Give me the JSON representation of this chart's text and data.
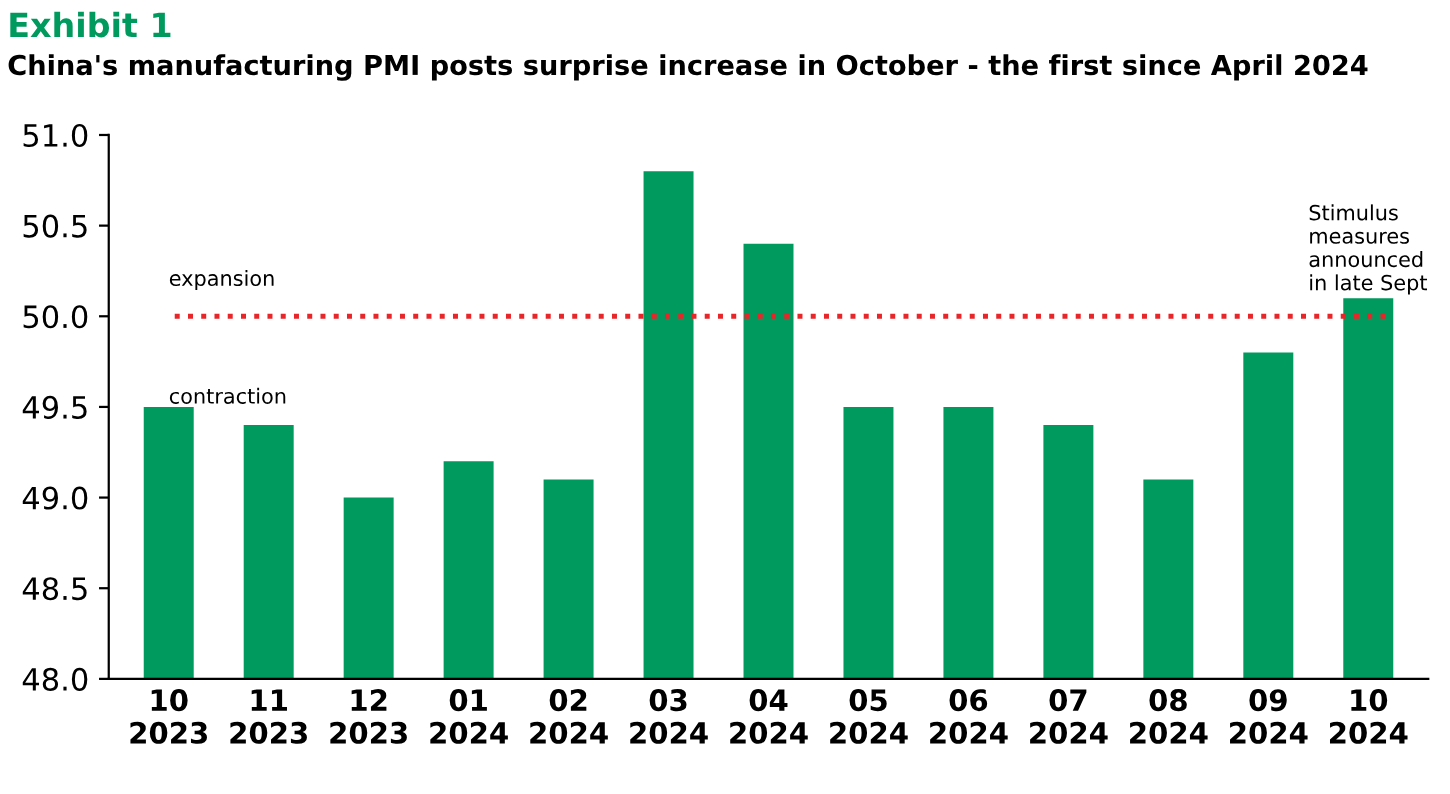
{
  "chart_data": {
    "type": "bar",
    "title": "Exhibit 1",
    "subtitle": "China's manufacturing PMI posts surprise increase in October - the first since April 2024",
    "categories": [
      "10\n2023",
      "11\n2023",
      "12\n2023",
      "01\n2024",
      "02\n2024",
      "03\n2024",
      "04\n2024",
      "05\n2024",
      "06\n2024",
      "07\n2024",
      "08\n2024",
      "09\n2024",
      "10\n2024"
    ],
    "values": [
      49.5,
      49.4,
      49.0,
      49.2,
      49.1,
      50.8,
      50.4,
      49.5,
      49.5,
      49.4,
      49.1,
      49.8,
      50.1
    ],
    "color": "#009a5e",
    "ylim": [
      48,
      51
    ],
    "yticks": [
      {
        "value": 48,
        "label": "48.0"
      },
      {
        "value": 48.5,
        "label": "48.5"
      },
      {
        "value": 49,
        "label": "49.0"
      },
      {
        "value": 49.5,
        "label": "49.5"
      },
      {
        "value": 50,
        "label": "50.0"
      },
      {
        "value": 50.5,
        "label": "50.5"
      },
      {
        "value": 51,
        "label": "51.0"
      }
    ],
    "ref_lines": [
      {
        "axis": "y",
        "value": 50,
        "color": "#e8262a",
        "line_style": "dotted"
      }
    ],
    "annotations": [
      "expansion",
      "contraction",
      "Stimulus\nmeasures\nannounced\nin late Sept"
    ],
    "grid": false
  }
}
